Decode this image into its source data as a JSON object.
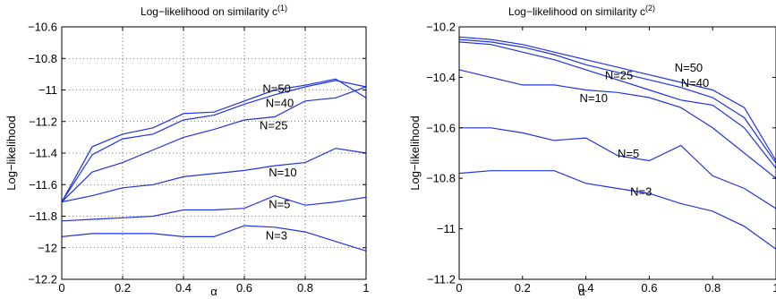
{
  "chart_data": [
    {
      "type": "line",
      "title": "Log−likelihood on similarity c",
      "title_superscript": "(1)",
      "xlabel": "α",
      "ylabel": "Log−likelihood",
      "xlim": [
        0,
        1
      ],
      "ylim": [
        -12.2,
        -10.6
      ],
      "grid": true,
      "line_color": "#1f33e6",
      "xticks": [
        0,
        0.2,
        0.4,
        0.6,
        0.8,
        1
      ],
      "xtick_labels": [
        "0",
        "0.2",
        "0.4",
        "0.6",
        "0.8",
        "1"
      ],
      "yticks": [
        -10.6,
        -10.8,
        -11,
        -11.2,
        -11.4,
        -11.6,
        -11.8,
        -12,
        -12.2
      ],
      "ytick_labels": [
        "−10.6",
        "−10.8",
        "−11",
        "−11.2",
        "−11.4",
        "−11.6",
        "−11.8",
        "−12",
        "−12.2"
      ],
      "x": [
        0,
        0.1,
        0.2,
        0.3,
        0.4,
        0.5,
        0.6,
        0.7,
        0.8,
        0.9,
        1
      ],
      "series": [
        {
          "name": "N=50",
          "label_at": [
            0.66,
            -10.99
          ],
          "values": [
            -11.71,
            -11.36,
            -11.28,
            -11.24,
            -11.15,
            -11.14,
            -11.07,
            -11.0,
            -10.97,
            -10.93,
            -11.05
          ]
        },
        {
          "name": "N=40",
          "label_at": [
            0.67,
            -11.08
          ],
          "values": [
            -11.71,
            -11.41,
            -11.31,
            -11.28,
            -11.19,
            -11.16,
            -11.09,
            -11.03,
            -10.98,
            -10.94,
            -10.98
          ]
        },
        {
          "name": "N=25",
          "label_at": [
            0.65,
            -11.22
          ],
          "values": [
            -11.71,
            -11.52,
            -11.46,
            -11.38,
            -11.3,
            -11.25,
            -11.19,
            -11.17,
            -11.07,
            -11.05,
            -10.98
          ]
        },
        {
          "name": "N=10",
          "label_at": [
            0.68,
            -11.52
          ],
          "values": [
            -11.71,
            -11.67,
            -11.62,
            -11.6,
            -11.55,
            -11.53,
            -11.51,
            -11.48,
            -11.46,
            -11.37,
            -11.4
          ]
        },
        {
          "name": "N=5",
          "label_at": [
            0.68,
            -11.72
          ],
          "values": [
            -11.83,
            -11.82,
            -11.81,
            -11.8,
            -11.76,
            -11.76,
            -11.75,
            -11.67,
            -11.73,
            -11.71,
            -11.68
          ]
        },
        {
          "name": "N=3",
          "label_at": [
            0.67,
            -11.92
          ],
          "values": [
            -11.93,
            -11.91,
            -11.91,
            -11.91,
            -11.93,
            -11.93,
            -11.86,
            -11.87,
            -11.9,
            -11.96,
            -12.02
          ]
        }
      ]
    },
    {
      "type": "line",
      "title": "Log−likelihood on similarity c",
      "title_superscript": "(2)",
      "xlabel": "α",
      "ylabel": "Log−likelihood",
      "xlim": [
        0,
        1
      ],
      "ylim": [
        -11.2,
        -10.2
      ],
      "grid": false,
      "line_color": "#1f33e6",
      "xticks": [
        0,
        0.2,
        0.4,
        0.6,
        0.8,
        1
      ],
      "xtick_labels": [
        "0",
        "0.2",
        "0.4",
        "0.6",
        "0.8",
        "1"
      ],
      "yticks": [
        -10.2,
        -10.4,
        -10.6,
        -10.8,
        -11,
        -11.2
      ],
      "ytick_labels": [
        "−10.2",
        "−10.4",
        "−10.6",
        "−10.8",
        "−11",
        "−11.2"
      ],
      "x": [
        0,
        0.1,
        0.2,
        0.3,
        0.4,
        0.5,
        0.6,
        0.7,
        0.8,
        0.9,
        1
      ],
      "series": [
        {
          "name": "N=50",
          "label_at": [
            0.68,
            -10.36
          ],
          "values": [
            -10.24,
            -10.25,
            -10.27,
            -10.3,
            -10.33,
            -10.36,
            -10.39,
            -10.42,
            -10.45,
            -10.52,
            -10.73
          ]
        },
        {
          "name": "N=40",
          "label_at": [
            0.7,
            -10.42
          ],
          "values": [
            -10.25,
            -10.26,
            -10.28,
            -10.31,
            -10.35,
            -10.38,
            -10.41,
            -10.44,
            -10.48,
            -10.56,
            -10.74
          ]
        },
        {
          "name": "N=25",
          "label_at": [
            0.46,
            -10.39
          ],
          "values": [
            -10.26,
            -10.27,
            -10.3,
            -10.33,
            -10.37,
            -10.41,
            -10.45,
            -10.49,
            -10.51,
            -10.6,
            -10.76
          ]
        },
        {
          "name": "N=10",
          "label_at": [
            0.38,
            -10.48
          ],
          "values": [
            -10.37,
            -10.4,
            -10.43,
            -10.43,
            -10.45,
            -10.46,
            -10.48,
            -10.52,
            -10.6,
            -10.7,
            -10.8
          ]
        },
        {
          "name": "N=5",
          "label_at": [
            0.5,
            -10.7
          ],
          "values": [
            -10.6,
            -10.6,
            -10.62,
            -10.65,
            -10.64,
            -10.71,
            -10.73,
            -10.67,
            -10.79,
            -10.84,
            -10.92
          ]
        },
        {
          "name": "N=3",
          "label_at": [
            0.54,
            -10.85
          ],
          "values": [
            -10.78,
            -10.77,
            -10.77,
            -10.77,
            -10.82,
            -10.84,
            -10.86,
            -10.9,
            -10.93,
            -10.99,
            -11.08
          ]
        }
      ]
    }
  ]
}
